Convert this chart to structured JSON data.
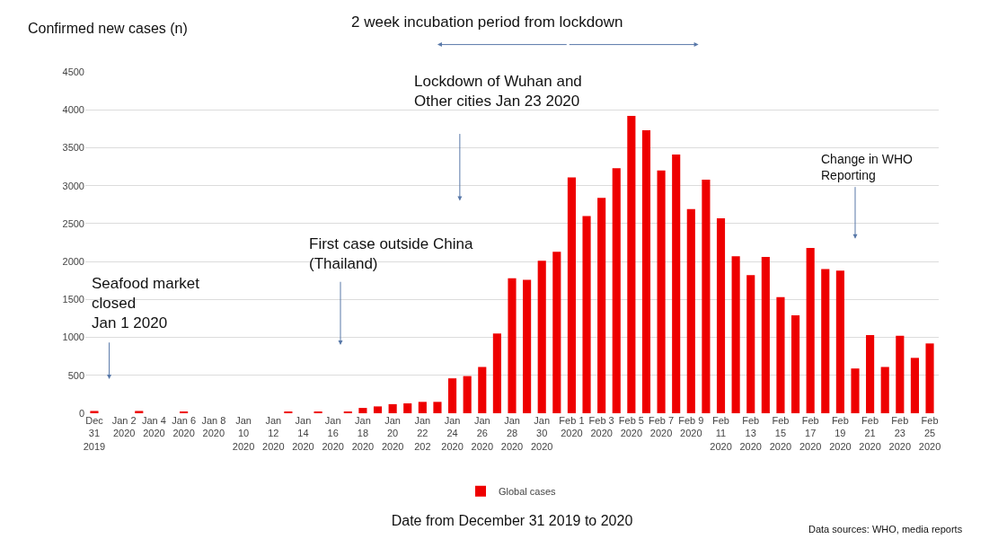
{
  "chart_data": {
    "type": "bar",
    "ylabel": "Confirmed new cases (n)",
    "xlabel": "Date from December 31 2019 to 2020",
    "categories": [
      "Dec\n31\n2019",
      null,
      "Jan 2\n2020",
      null,
      "Jan 4\n2020",
      null,
      "Jan 6\n2020",
      null,
      "Jan 8\n2020",
      null,
      "Jan\n10\n2020",
      null,
      "Jan\n12\n2020",
      null,
      "Jan\n14\n2020",
      null,
      "Jan\n16\n2020",
      null,
      "Jan\n18\n2020",
      null,
      "Jan\n20\n2020",
      null,
      "Jan\n22\n202",
      null,
      "Jan\n24\n2020",
      null,
      "Jan\n26\n2020",
      null,
      "Jan\n28\n2020",
      null,
      "Jan\n30\n2020",
      null,
      "Feb 1\n2020",
      null,
      "Feb 3\n2020",
      null,
      "Feb 5\n2020",
      null,
      "Feb 7\n2020",
      null,
      "Feb 9\n2020",
      null,
      "Feb\n11\n2020",
      null,
      "Feb\n13\n2020",
      null,
      "Feb\n15\n2020",
      null,
      "Feb\n17\n2020",
      null,
      "Feb\n19\n2020",
      null,
      "Feb\n21\n2020",
      null,
      "Feb\n23\n2020",
      null,
      "Feb\n25\n2020"
    ],
    "series": [
      {
        "name": "Global cases",
        "color": "#ee0000",
        "values": [
          30,
          0,
          0,
          30,
          0,
          0,
          20,
          0,
          0,
          0,
          0,
          0,
          0,
          20,
          0,
          20,
          0,
          20,
          70,
          90,
          120,
          130,
          150,
          150,
          460,
          490,
          610,
          1050,
          1780,
          1760,
          2010,
          2130,
          3110,
          2600,
          2840,
          3230,
          3920,
          3730,
          3200,
          3410,
          2690,
          3080,
          2570,
          2070,
          1820,
          2060,
          1530,
          1290,
          2180,
          1900,
          1880,
          590,
          1030,
          610,
          1020,
          730,
          920
        ]
      }
    ],
    "ylim": [
      0,
      4500
    ],
    "yticks": [
      0,
      500,
      1000,
      1500,
      2000,
      2500,
      3000,
      3500,
      4000,
      4500
    ],
    "grid": "y",
    "legend": "bottom",
    "annotations": [
      "2 week incubation period from lockdown",
      "Lockdown of Wuhan and\nOther cities Jan 23 2020",
      "First case outside China\n(Thailand)",
      "Seafood market\nclosed\nJan 1 2020",
      "Change in WHO\nReporting",
      "Data sources: WHO, media reports"
    ]
  }
}
